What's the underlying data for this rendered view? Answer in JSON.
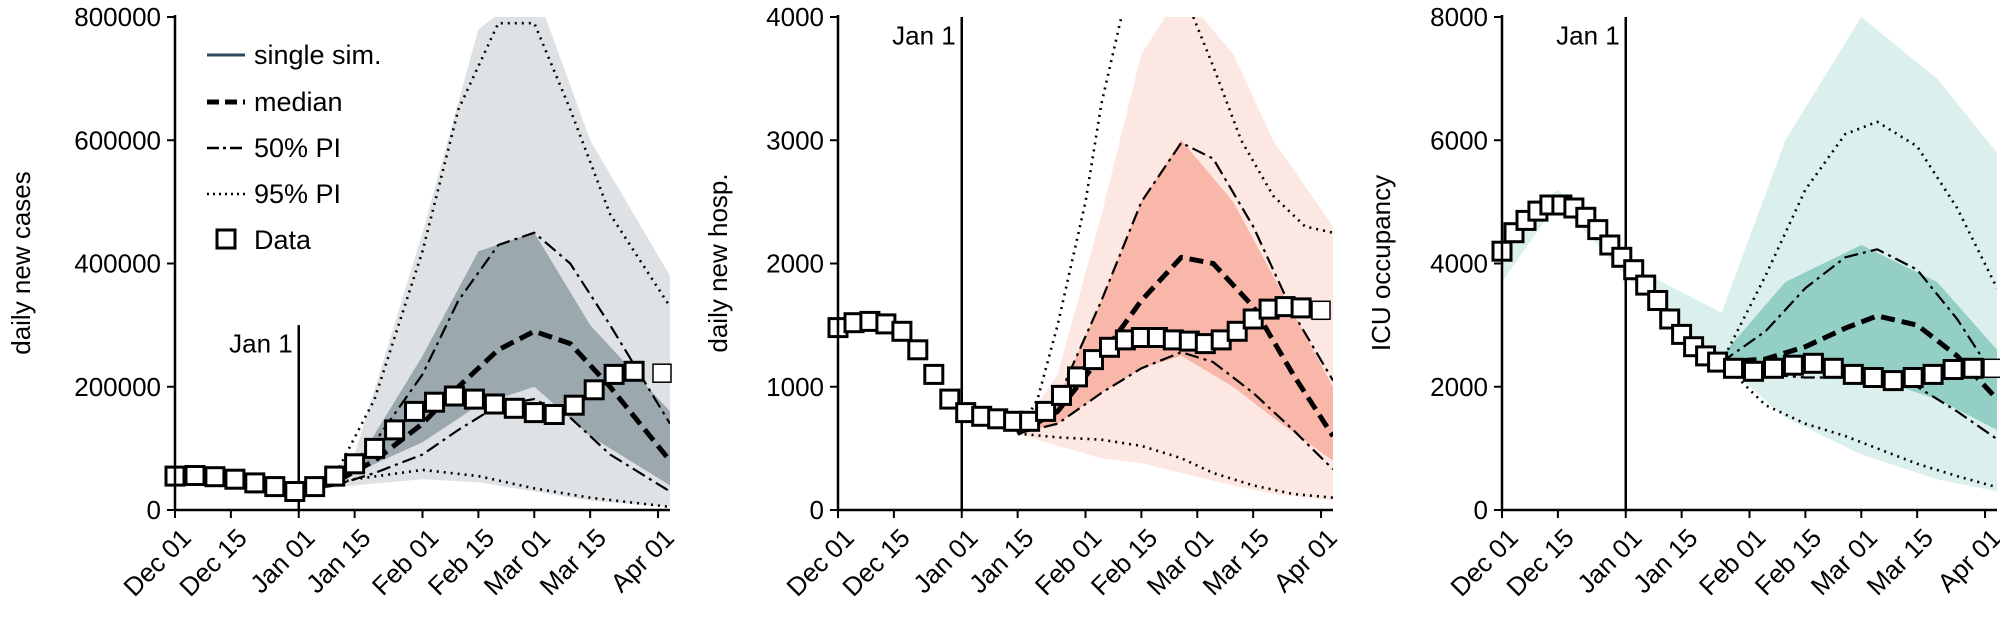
{
  "colors": {
    "panel1_fill": "#2f4b5a",
    "panel2_fill": "#f0684a",
    "panel3_fill": "#1f9a8a",
    "line": "#000000"
  },
  "legend": {
    "items": [
      {
        "label": "single sim.",
        "style": "single"
      },
      {
        "label": "median",
        "style": "median"
      },
      {
        "label": "50% PI",
        "style": "pi50"
      },
      {
        "label": "95% PI",
        "style": "pi95"
      },
      {
        "label": "Data",
        "style": "data"
      }
    ]
  },
  "chart_data": [
    {
      "type": "line",
      "ylabel": "daily new cases",
      "ylim": [
        0,
        800000
      ],
      "yticks": [
        0,
        200000,
        400000,
        600000,
        800000
      ],
      "ytick_labels": [
        "0",
        "200000",
        "400000",
        "600000",
        "800000"
      ],
      "xlim": [
        "2021-12-01",
        "2022-04-04"
      ],
      "xticks": [
        "2021-12-01",
        "2021-12-15",
        "2022-01-01",
        "2022-01-15",
        "2022-02-01",
        "2022-02-15",
        "2022-03-01",
        "2022-03-15",
        "2022-04-01"
      ],
      "xtick_labels": [
        "Dec 01",
        "Dec 15",
        "Jan 01",
        "Jan 15",
        "Feb 01",
        "Feb 15",
        "Mar 01",
        "Mar 15",
        "Apr 01"
      ],
      "vline": {
        "label": "Jan 1",
        "x": "2022-01-01",
        "y_top": 300000,
        "label_y": 270000
      },
      "band_color": "#2f4b5a",
      "band_outer": {
        "x": [
          "2022-01-01",
          "2022-01-15",
          "2022-02-01",
          "2022-02-15",
          "2022-03-01",
          "2022-03-15",
          "2022-04-04"
        ],
        "lower": [
          30000,
          40000,
          50000,
          45000,
          30000,
          15000,
          5000
        ],
        "upper": [
          30000,
          90000,
          450000,
          780000,
          850000,
          600000,
          380000
        ]
      },
      "band_inner": {
        "x": [
          "2022-01-01",
          "2022-01-15",
          "2022-02-01",
          "2022-02-15",
          "2022-03-01",
          "2022-03-15",
          "2022-04-04"
        ],
        "lower": [
          30000,
          60000,
          110000,
          170000,
          200000,
          120000,
          40000
        ],
        "upper": [
          30000,
          70000,
          250000,
          420000,
          450000,
          300000,
          160000
        ]
      },
      "series": [
        {
          "name": "median",
          "style": "median",
          "x": [
            "2022-01-01",
            "2022-01-10",
            "2022-01-20",
            "2022-02-01",
            "2022-02-10",
            "2022-02-20",
            "2022-03-01",
            "2022-03-10",
            "2022-03-20",
            "2022-04-04"
          ],
          "y": [
            30000,
            45000,
            80000,
            140000,
            200000,
            260000,
            290000,
            270000,
            200000,
            80000
          ]
        },
        {
          "name": "50% PI",
          "style": "pi50",
          "x": [
            "2022-01-01",
            "2022-01-10",
            "2022-01-20",
            "2022-02-01",
            "2022-02-10",
            "2022-02-20",
            "2022-03-01",
            "2022-03-10",
            "2022-03-20",
            "2022-04-04"
          ],
          "y": [
            30000,
            50000,
            110000,
            220000,
            340000,
            430000,
            450000,
            400000,
            300000,
            140000
          ]
        },
        {
          "name": "50% PI",
          "style": "pi50",
          "x": [
            "2022-01-01",
            "2022-01-10",
            "2022-01-20",
            "2022-02-01",
            "2022-02-10",
            "2022-02-20",
            "2022-03-01",
            "2022-03-10",
            "2022-03-20",
            "2022-04-04"
          ],
          "y": [
            30000,
            40000,
            60000,
            90000,
            130000,
            170000,
            180000,
            150000,
            90000,
            30000
          ]
        },
        {
          "name": "95% PI",
          "style": "pi95",
          "x": [
            "2022-01-01",
            "2022-01-10",
            "2022-01-20",
            "2022-02-01",
            "2022-02-10",
            "2022-02-20",
            "2022-03-01",
            "2022-03-10",
            "2022-03-20",
            "2022-04-04"
          ],
          "y": [
            30000,
            55000,
            180000,
            420000,
            650000,
            790000,
            790000,
            650000,
            480000,
            330000
          ]
        },
        {
          "name": "95% PI",
          "style": "pi95",
          "x": [
            "2022-01-01",
            "2022-01-15",
            "2022-02-01",
            "2022-02-15",
            "2022-03-01",
            "2022-03-15",
            "2022-04-04"
          ],
          "y": [
            30000,
            50000,
            65000,
            55000,
            35000,
            20000,
            5000
          ]
        },
        {
          "name": "Data",
          "style": "data",
          "x": [
            "2021-12-01",
            "2021-12-06",
            "2021-12-11",
            "2021-12-16",
            "2021-12-21",
            "2021-12-26",
            "2021-12-31",
            "2022-01-05",
            "2022-01-10",
            "2022-01-15",
            "2022-01-20",
            "2022-01-25",
            "2022-01-30",
            "2022-02-04",
            "2022-02-09",
            "2022-02-14",
            "2022-02-19",
            "2022-02-24",
            "2022-03-01",
            "2022-03-06",
            "2022-03-11",
            "2022-03-16",
            "2022-03-21",
            "2022-03-26",
            "2022-04-02"
          ],
          "y": [
            55000,
            56000,
            54000,
            50000,
            44000,
            38000,
            30000,
            38000,
            55000,
            75000,
            100000,
            130000,
            160000,
            175000,
            185000,
            180000,
            172000,
            165000,
            158000,
            155000,
            170000,
            195000,
            220000,
            225000,
            222000
          ]
        }
      ]
    },
    {
      "type": "line",
      "ylabel": "daily new hosp.",
      "ylim": [
        0,
        4000
      ],
      "yticks": [
        0,
        1000,
        2000,
        3000,
        4000
      ],
      "ytick_labels": [
        "0",
        "1000",
        "2000",
        "3000",
        "4000"
      ],
      "xlim": [
        "2021-12-01",
        "2022-04-04"
      ],
      "xticks": [
        "2021-12-01",
        "2021-12-15",
        "2022-01-01",
        "2022-01-15",
        "2022-02-01",
        "2022-02-15",
        "2022-03-01",
        "2022-03-15",
        "2022-04-01"
      ],
      "xtick_labels": [
        "Dec 01",
        "Dec 15",
        "Jan 01",
        "Jan 15",
        "Feb 01",
        "Feb 15",
        "Mar 01",
        "Mar 15",
        "Apr 01"
      ],
      "vline": {
        "label": "Jan 1",
        "x": "2022-01-01",
        "y_top": 4000,
        "label_y": 3850
      },
      "band_color": "#f0684a",
      "band_outer": {
        "x": [
          "2022-01-15",
          "2022-01-25",
          "2022-02-05",
          "2022-02-15",
          "2022-02-25",
          "2022-03-10",
          "2022-03-20",
          "2022-04-04"
        ],
        "lower": [
          620,
          520,
          420,
          380,
          300,
          200,
          130,
          80
        ],
        "upper": [
          620,
          1100,
          2400,
          3700,
          4200,
          3700,
          3000,
          2300
        ]
      },
      "band_inner": {
        "x": [
          "2022-01-15",
          "2022-01-25",
          "2022-02-05",
          "2022-02-15",
          "2022-02-25",
          "2022-03-10",
          "2022-03-20",
          "2022-04-04"
        ],
        "lower": [
          620,
          700,
          950,
          1150,
          1250,
          1000,
          750,
          400
        ],
        "upper": [
          620,
          900,
          1700,
          2500,
          3000,
          2500,
          1900,
          1000
        ]
      },
      "series": [
        {
          "name": "median",
          "style": "median",
          "x": [
            "2022-01-15",
            "2022-01-25",
            "2022-02-05",
            "2022-02-15",
            "2022-02-25",
            "2022-03-05",
            "2022-03-15",
            "2022-03-25",
            "2022-04-04"
          ],
          "y": [
            620,
            800,
            1250,
            1700,
            2050,
            2000,
            1650,
            1100,
            600
          ]
        },
        {
          "name": "50% PI",
          "style": "pi50",
          "x": [
            "2022-01-15",
            "2022-01-25",
            "2022-02-05",
            "2022-02-15",
            "2022-02-25",
            "2022-03-05",
            "2022-03-15",
            "2022-03-25",
            "2022-04-04"
          ],
          "y": [
            620,
            900,
            1700,
            2500,
            2980,
            2850,
            2300,
            1600,
            1050
          ]
        },
        {
          "name": "50% PI",
          "style": "pi50",
          "x": [
            "2022-01-15",
            "2022-01-25",
            "2022-02-05",
            "2022-02-15",
            "2022-02-25",
            "2022-03-05",
            "2022-03-15",
            "2022-03-25",
            "2022-04-04"
          ],
          "y": [
            620,
            700,
            950,
            1150,
            1280,
            1200,
            950,
            650,
            330
          ]
        },
        {
          "name": "95% PI",
          "style": "pi95",
          "x": [
            "2022-01-15",
            "2022-01-20",
            "2022-01-25",
            "2022-02-01",
            "2022-02-05",
            "2022-02-10"
          ],
          "y": [
            620,
            900,
            1500,
            2500,
            3300,
            4000
          ]
        },
        {
          "name": "95% PI",
          "style": "pi95",
          "x": [
            "2022-02-28",
            "2022-03-05",
            "2022-03-12",
            "2022-03-20",
            "2022-03-28",
            "2022-04-04"
          ],
          "y": [
            4000,
            3600,
            3000,
            2550,
            2300,
            2250
          ]
        },
        {
          "name": "95% PI",
          "style": "pi95",
          "x": [
            "2022-01-15",
            "2022-01-25",
            "2022-02-05",
            "2022-02-15",
            "2022-02-25",
            "2022-03-05",
            "2022-03-15",
            "2022-03-25",
            "2022-04-04"
          ],
          "y": [
            620,
            590,
            570,
            520,
            420,
            300,
            200,
            130,
            100
          ]
        },
        {
          "name": "Data",
          "style": "data",
          "x": [
            "2021-12-01",
            "2021-12-05",
            "2021-12-09",
            "2021-12-13",
            "2021-12-17",
            "2021-12-21",
            "2021-12-25",
            "2021-12-29",
            "2022-01-02",
            "2022-01-06",
            "2022-01-10",
            "2022-01-14",
            "2022-01-18",
            "2022-01-22",
            "2022-01-26",
            "2022-01-30",
            "2022-02-03",
            "2022-02-07",
            "2022-02-11",
            "2022-02-15",
            "2022-02-19",
            "2022-02-23",
            "2022-02-27",
            "2022-03-03",
            "2022-03-07",
            "2022-03-11",
            "2022-03-15",
            "2022-03-19",
            "2022-03-23",
            "2022-03-27",
            "2022-04-01"
          ],
          "y": [
            1480,
            1520,
            1530,
            1510,
            1450,
            1300,
            1100,
            900,
            790,
            760,
            740,
            720,
            720,
            800,
            930,
            1080,
            1220,
            1320,
            1380,
            1400,
            1400,
            1380,
            1370,
            1350,
            1380,
            1450,
            1550,
            1630,
            1650,
            1640,
            1620
          ]
        }
      ]
    },
    {
      "type": "line",
      "ylabel": "ICU occupancy",
      "ylim": [
        0,
        8000
      ],
      "yticks": [
        0,
        2000,
        4000,
        6000,
        8000
      ],
      "ytick_labels": [
        "0",
        "2000",
        "4000",
        "6000",
        "8000"
      ],
      "xlim": [
        "2021-12-01",
        "2022-04-04"
      ],
      "xticks": [
        "2021-12-01",
        "2021-12-15",
        "2022-01-01",
        "2022-01-15",
        "2022-02-01",
        "2022-02-15",
        "2022-03-01",
        "2022-03-15",
        "2022-04-01"
      ],
      "xtick_labels": [
        "Dec 01",
        "Dec 15",
        "Jan 01",
        "Jan 15",
        "Feb 01",
        "Feb 15",
        "Mar 01",
        "Mar 15",
        "Apr 01"
      ],
      "vline": {
        "label": "Jan 1",
        "x": "2022-01-01",
        "y_top": 8000,
        "label_y": 7700
      },
      "band_color": "#1f9a8a",
      "band_outer": {
        "x": [
          "2021-12-01",
          "2021-12-15",
          "2022-01-01",
          "2022-01-25",
          "2022-02-10",
          "2022-03-01",
          "2022-03-20",
          "2022-04-04"
        ],
        "lower": [
          3700,
          5000,
          3800,
          2400,
          1500,
          900,
          500,
          300
        ],
        "upper": [
          4500,
          5200,
          4000,
          3200,
          6000,
          8000,
          7000,
          5800
        ]
      },
      "band_inner": {
        "x": [
          "2022-01-25",
          "2022-02-10",
          "2022-03-01",
          "2022-03-20",
          "2022-04-04"
        ],
        "lower": [
          2400,
          2300,
          2200,
          1800,
          1300
        ],
        "upper": [
          2500,
          3700,
          4300,
          3700,
          2600
        ]
      },
      "series": [
        {
          "name": "median",
          "style": "median",
          "x": [
            "2022-01-25",
            "2022-02-05",
            "2022-02-15",
            "2022-02-25",
            "2022-03-05",
            "2022-03-15",
            "2022-03-25",
            "2022-04-04"
          ],
          "y": [
            2400,
            2450,
            2650,
            2950,
            3150,
            3000,
            2500,
            1800
          ]
        },
        {
          "name": "50% PI",
          "style": "pi50",
          "x": [
            "2022-01-25",
            "2022-02-05",
            "2022-02-15",
            "2022-02-25",
            "2022-03-05",
            "2022-03-15",
            "2022-03-25",
            "2022-04-04"
          ],
          "y": [
            2400,
            2900,
            3600,
            4100,
            4230,
            3900,
            3100,
            2100
          ]
        },
        {
          "name": "50% PI",
          "style": "pi50",
          "x": [
            "2022-01-25",
            "2022-02-05",
            "2022-02-15",
            "2022-02-25",
            "2022-03-05",
            "2022-03-15",
            "2022-03-25",
            "2022-04-04"
          ],
          "y": [
            2400,
            2200,
            2150,
            2150,
            2150,
            2000,
            1600,
            1150
          ]
        },
        {
          "name": "95% PI",
          "style": "pi95",
          "x": [
            "2022-01-25",
            "2022-02-05",
            "2022-02-15",
            "2022-02-25",
            "2022-03-05",
            "2022-03-15",
            "2022-03-25",
            "2022-04-04"
          ],
          "y": [
            2400,
            3800,
            5200,
            6100,
            6300,
            5900,
            4900,
            3600
          ]
        },
        {
          "name": "95% PI",
          "style": "pi95",
          "x": [
            "2022-01-25",
            "2022-02-05",
            "2022-02-15",
            "2022-02-25",
            "2022-03-05",
            "2022-03-15",
            "2022-03-25",
            "2022-04-04"
          ],
          "y": [
            2400,
            1700,
            1400,
            1200,
            1000,
            750,
            550,
            370
          ]
        },
        {
          "name": "Data",
          "style": "data",
          "x": [
            "2021-12-01",
            "2021-12-04",
            "2021-12-07",
            "2021-12-10",
            "2021-12-13",
            "2021-12-16",
            "2021-12-19",
            "2021-12-22",
            "2021-12-25",
            "2021-12-28",
            "2021-12-31",
            "2022-01-03",
            "2022-01-06",
            "2022-01-09",
            "2022-01-12",
            "2022-01-15",
            "2022-01-18",
            "2022-01-21",
            "2022-01-24",
            "2022-01-28",
            "2022-02-02",
            "2022-02-07",
            "2022-02-12",
            "2022-02-17",
            "2022-02-22",
            "2022-02-27",
            "2022-03-04",
            "2022-03-09",
            "2022-03-14",
            "2022-03-19",
            "2022-03-24",
            "2022-03-29",
            "2022-04-03"
          ],
          "y": [
            4200,
            4500,
            4700,
            4850,
            4950,
            4950,
            4900,
            4750,
            4550,
            4300,
            4100,
            3900,
            3650,
            3400,
            3100,
            2850,
            2650,
            2500,
            2400,
            2300,
            2250,
            2300,
            2350,
            2380,
            2300,
            2200,
            2150,
            2100,
            2150,
            2200,
            2280,
            2300,
            2300
          ]
        }
      ]
    }
  ]
}
